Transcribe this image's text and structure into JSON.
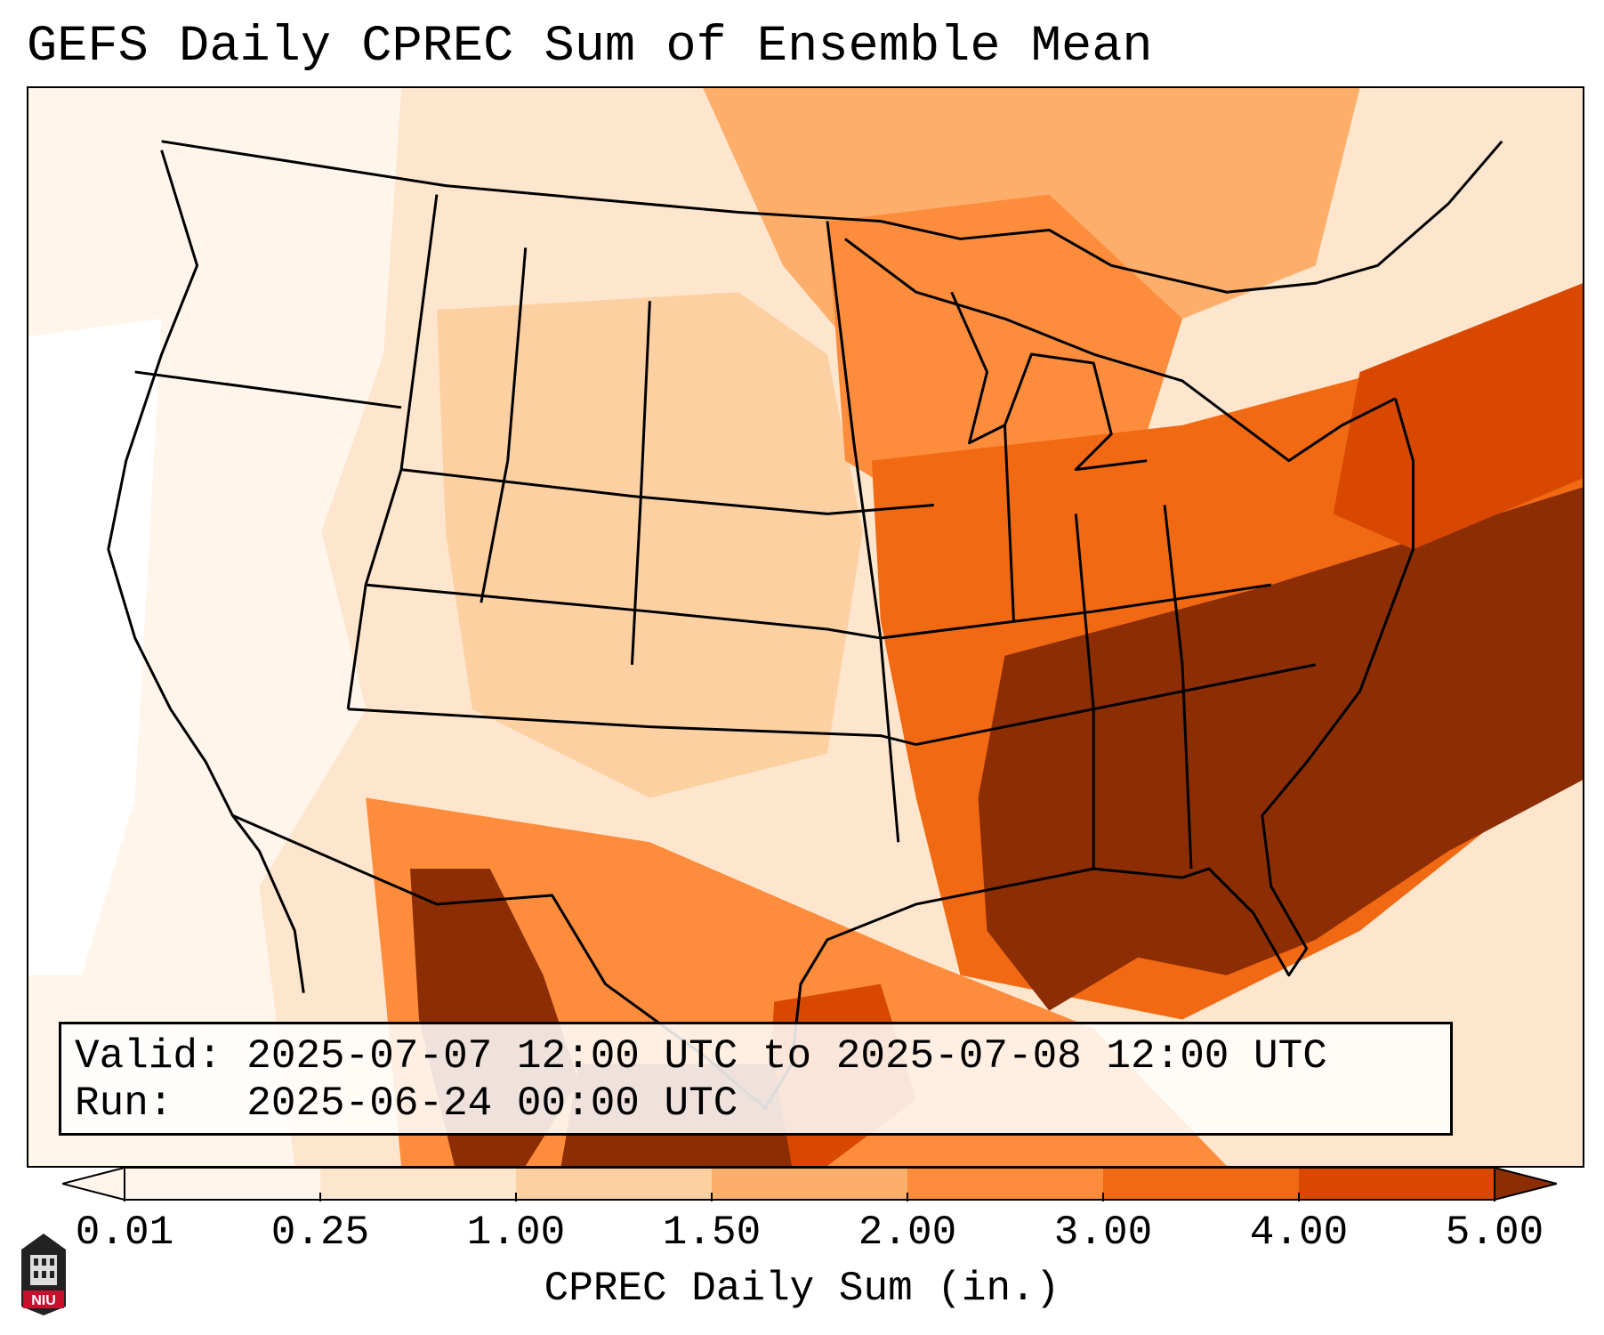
{
  "title": "GEFS Daily CPREC Sum of Ensemble Mean",
  "info": {
    "valid_line": "Valid: 2025-07-07 12:00 UTC to 2025-07-08 12:00 UTC",
    "run_line": "Run:   2025-06-24 00:00 UTC"
  },
  "colorbar": {
    "label": "CPREC Daily Sum (in.)",
    "ticks": [
      "0.01",
      "0.25",
      "1.00",
      "1.50",
      "2.00",
      "3.00",
      "4.00",
      "5.00"
    ],
    "colors": [
      "#fff5eb",
      "#fee6ce",
      "#fdd0a2",
      "#fdae6b",
      "#fd8d3c",
      "#f16913",
      "#d94801",
      "#8c2d04"
    ],
    "extend": "both"
  },
  "logo": {
    "text": "NIU",
    "color": "#c8102e"
  },
  "colors": {
    "very_light": "#fff5eb",
    "light": "#fee6ce",
    "light_mid": "#fdd0a2",
    "mid": "#fdae6b",
    "orange": "#fd8d3c",
    "dark_orange": "#f16913",
    "red_orange": "#d94801",
    "brown": "#8c2d04"
  }
}
